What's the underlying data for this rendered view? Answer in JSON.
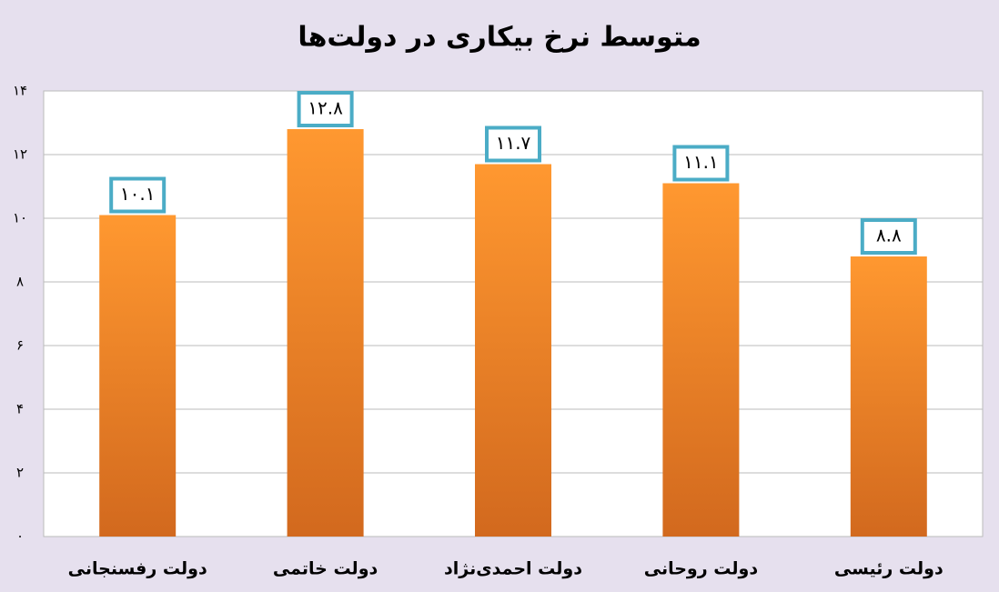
{
  "chart_data": {
    "type": "bar",
    "title": "متوسط نرخ بیکاری در دولت‌ها",
    "categories": [
      "دولت رفسنجانی",
      "دولت خاتمی",
      "دولت احمدی‌نژاد",
      "دولت روحانی",
      "دولت رئیسی"
    ],
    "values": [
      10.1,
      12.8,
      11.7,
      11.1,
      8.8
    ],
    "value_labels": [
      "۱۰.۱",
      "۱۲.۸",
      "۱۱.۷",
      "۱۱.۱",
      "۸.۸"
    ],
    "color": "#f7922a",
    "ylim": [
      0,
      14
    ],
    "yticks": [
      {
        "value": 0,
        "label": "۰"
      },
      {
        "value": 2,
        "label": "۲"
      },
      {
        "value": 4,
        "label": "۴"
      },
      {
        "value": 6,
        "label": "۶"
      },
      {
        "value": 8,
        "label": "۸"
      },
      {
        "value": 10,
        "label": "۱۰"
      },
      {
        "value": 12,
        "label": "۱۲"
      },
      {
        "value": 14,
        "label": "۱۴"
      }
    ],
    "grid": true
  }
}
